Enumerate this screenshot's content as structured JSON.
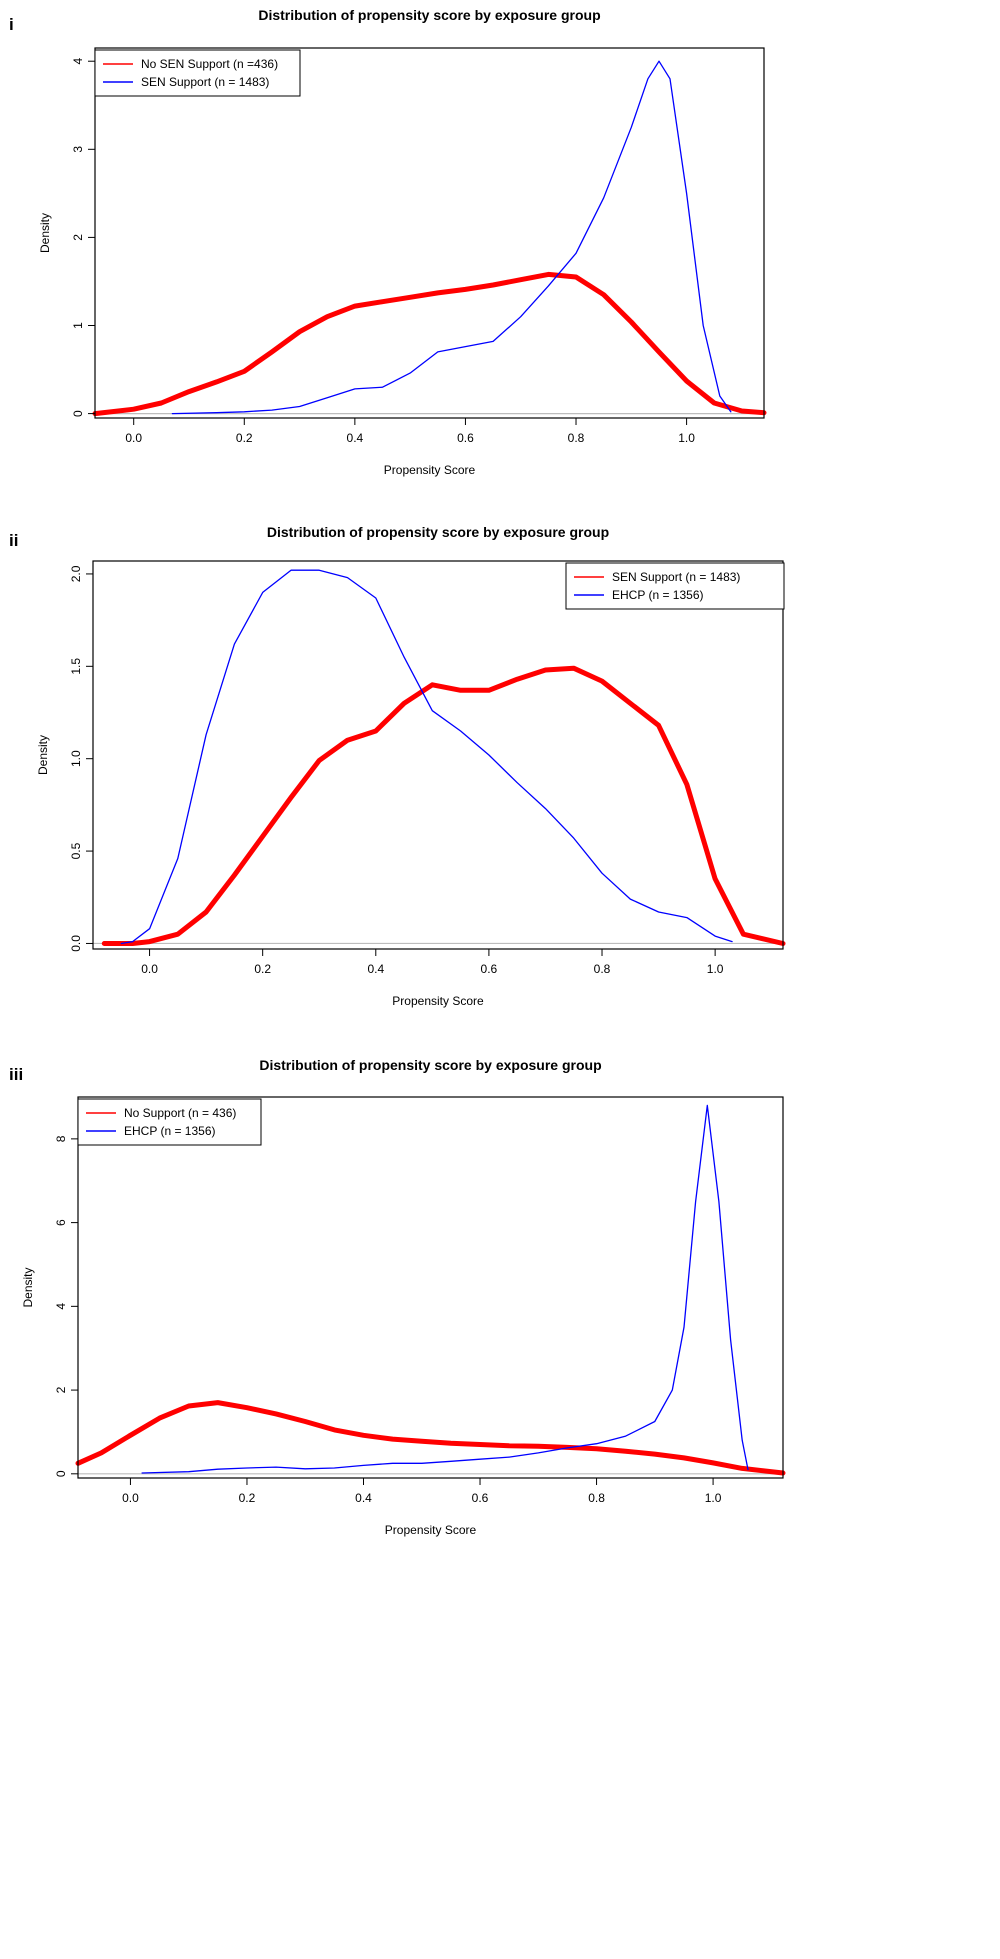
{
  "chart_data": [
    {
      "panel": "i",
      "type": "line",
      "title": "Distribution of propensity score by exposure group",
      "xlabel": "Propensity Score",
      "ylabel": "Density",
      "xlim": [
        -0.07,
        1.14
      ],
      "ylim": [
        -0.05,
        4.15
      ],
      "xticks": [
        0.0,
        0.2,
        0.4,
        0.6,
        0.8,
        1.0
      ],
      "xtick_labels": [
        "0.0",
        "0.2",
        "0.4",
        "0.6",
        "0.8",
        "1.0"
      ],
      "yticks": [
        0,
        1,
        2,
        3,
        4
      ],
      "ytick_labels": [
        "0",
        "1",
        "2",
        "3",
        "4"
      ],
      "legend_position": "top-left",
      "series": [
        {
          "name": "No SEN Support (n =436)",
          "color": "#ff0000",
          "style": "thick",
          "x": [
            -0.07,
            0.0,
            0.05,
            0.1,
            0.15,
            0.2,
            0.25,
            0.3,
            0.35,
            0.4,
            0.45,
            0.5,
            0.55,
            0.6,
            0.65,
            0.7,
            0.75,
            0.8,
            0.85,
            0.9,
            0.95,
            1.0,
            1.05,
            1.1,
            1.14
          ],
          "y": [
            0.0,
            0.05,
            0.12,
            0.25,
            0.36,
            0.48,
            0.7,
            0.93,
            1.1,
            1.22,
            1.27,
            1.32,
            1.37,
            1.41,
            1.46,
            1.52,
            1.58,
            1.55,
            1.35,
            1.04,
            0.7,
            0.37,
            0.12,
            0.03,
            0.01
          ]
        },
        {
          "name": "SEN Support (n = 1483)",
          "color": "#0000ff",
          "style": "thin",
          "x": [
            0.07,
            0.15,
            0.2,
            0.25,
            0.3,
            0.35,
            0.4,
            0.45,
            0.5,
            0.55,
            0.6,
            0.65,
            0.7,
            0.75,
            0.8,
            0.85,
            0.9,
            0.93,
            0.95,
            0.97,
            1.0,
            1.03,
            1.06,
            1.08
          ],
          "y": [
            0.0,
            0.01,
            0.02,
            0.04,
            0.08,
            0.18,
            0.28,
            0.3,
            0.46,
            0.7,
            0.76,
            0.82,
            1.1,
            1.45,
            1.82,
            2.45,
            3.25,
            3.8,
            4.0,
            3.8,
            2.5,
            1.0,
            0.2,
            0.02
          ]
        }
      ]
    },
    {
      "panel": "ii",
      "type": "line",
      "title": "Distribution of propensity score by exposure group",
      "xlabel": "Propensity Score",
      "ylabel": "Density",
      "xlim": [
        -0.1,
        1.12
      ],
      "ylim": [
        -0.03,
        2.07
      ],
      "xticks": [
        0.0,
        0.2,
        0.4,
        0.6,
        0.8,
        1.0
      ],
      "xtick_labels": [
        "0.0",
        "0.2",
        "0.4",
        "0.6",
        "0.8",
        "1.0"
      ],
      "yticks": [
        0.0,
        0.5,
        1.0,
        1.5,
        2.0
      ],
      "ytick_labels": [
        "0.0",
        "0.5",
        "1.0",
        "1.5",
        "2.0"
      ],
      "legend_position": "top-right",
      "series": [
        {
          "name": "SEN Support (n = 1483)",
          "color": "#ff0000",
          "style": "thick",
          "x": [
            -0.08,
            -0.03,
            0.0,
            0.05,
            0.1,
            0.15,
            0.2,
            0.25,
            0.3,
            0.35,
            0.4,
            0.45,
            0.5,
            0.55,
            0.6,
            0.65,
            0.7,
            0.75,
            0.8,
            0.85,
            0.9,
            0.95,
            1.0,
            1.05,
            1.12
          ],
          "y": [
            0.0,
            0.0,
            0.01,
            0.05,
            0.17,
            0.37,
            0.58,
            0.79,
            0.99,
            1.1,
            1.15,
            1.3,
            1.4,
            1.37,
            1.37,
            1.43,
            1.48,
            1.49,
            1.42,
            1.3,
            1.18,
            0.86,
            0.35,
            0.05,
            0.0
          ]
        },
        {
          "name": "EHCP (n = 1356)",
          "color": "#0000ff",
          "style": "thin",
          "x": [
            -0.05,
            -0.03,
            0.0,
            0.05,
            0.1,
            0.15,
            0.2,
            0.25,
            0.3,
            0.35,
            0.4,
            0.45,
            0.5,
            0.55,
            0.6,
            0.65,
            0.7,
            0.75,
            0.8,
            0.85,
            0.9,
            0.95,
            1.0,
            1.03
          ],
          "y": [
            0.0,
            0.01,
            0.08,
            0.46,
            1.13,
            1.62,
            1.9,
            2.02,
            2.02,
            1.98,
            1.87,
            1.55,
            1.26,
            1.15,
            1.02,
            0.87,
            0.73,
            0.57,
            0.38,
            0.24,
            0.17,
            0.14,
            0.04,
            0.01
          ]
        }
      ]
    },
    {
      "panel": "iii",
      "type": "line",
      "title": "Distribution of propensity score by exposure group",
      "xlabel": "Propensity Score",
      "ylabel": "Density",
      "xlim": [
        -0.09,
        1.12
      ],
      "ylim": [
        -0.1,
        9.0
      ],
      "xticks": [
        0.0,
        0.2,
        0.4,
        0.6,
        0.8,
        1.0
      ],
      "xtick_labels": [
        "0.0",
        "0.2",
        "0.4",
        "0.6",
        "0.8",
        "1.0"
      ],
      "yticks": [
        0,
        2,
        4,
        6,
        8
      ],
      "ytick_labels": [
        "0",
        "2",
        "4",
        "6",
        "8"
      ],
      "legend_position": "top-left",
      "series": [
        {
          "name": "No Support (n = 436)",
          "color": "#ff0000",
          "style": "thick",
          "x": [
            -0.09,
            -0.05,
            0.0,
            0.05,
            0.1,
            0.15,
            0.2,
            0.25,
            0.3,
            0.35,
            0.4,
            0.45,
            0.5,
            0.55,
            0.6,
            0.65,
            0.7,
            0.75,
            0.8,
            0.85,
            0.9,
            0.95,
            1.0,
            1.05,
            1.12
          ],
          "y": [
            0.25,
            0.5,
            0.92,
            1.33,
            1.62,
            1.7,
            1.58,
            1.43,
            1.25,
            1.05,
            0.92,
            0.83,
            0.78,
            0.73,
            0.7,
            0.67,
            0.66,
            0.63,
            0.6,
            0.54,
            0.47,
            0.38,
            0.26,
            0.13,
            0.02
          ]
        },
        {
          "name": "EHCP (n = 1356)",
          "color": "#0000ff",
          "style": "thin",
          "x": [
            0.02,
            0.1,
            0.15,
            0.2,
            0.25,
            0.3,
            0.35,
            0.4,
            0.45,
            0.5,
            0.55,
            0.6,
            0.65,
            0.7,
            0.75,
            0.8,
            0.85,
            0.9,
            0.93,
            0.95,
            0.97,
            0.99,
            1.01,
            1.03,
            1.05,
            1.06
          ],
          "y": [
            0.02,
            0.05,
            0.11,
            0.14,
            0.16,
            0.12,
            0.14,
            0.2,
            0.25,
            0.25,
            0.3,
            0.35,
            0.4,
            0.5,
            0.62,
            0.72,
            0.9,
            1.25,
            2.0,
            3.5,
            6.5,
            8.8,
            6.5,
            3.2,
            0.8,
            0.1
          ]
        }
      ]
    }
  ]
}
